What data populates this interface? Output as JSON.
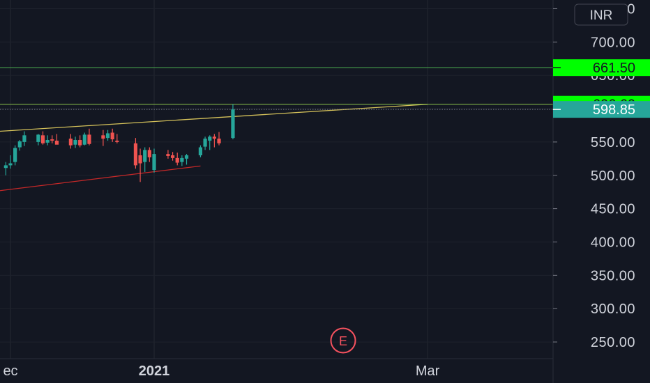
{
  "currency": "INR",
  "event_marker": "E",
  "chart_data": {
    "type": "candlestick",
    "x_ticks": [
      {
        "label": "ec",
        "date": "2020-12-01",
        "bold": false
      },
      {
        "label": "2021",
        "date": "2021-01-01",
        "bold": true
      },
      {
        "label": "Mar",
        "date": "2021-03-01",
        "bold": false
      }
    ],
    "y_ticks": [
      250,
      300,
      350,
      400,
      450,
      500,
      550,
      600,
      650,
      700,
      750
    ],
    "y_tick_labels": [
      "250.00",
      "300.00",
      "350.00",
      "400.00",
      "450.00",
      "500.00",
      "550.00",
      "600.00",
      "650.00",
      "700.00",
      "750.00"
    ],
    "ylim": [
      225,
      763
    ],
    "price_labels": [
      {
        "value": 661.5,
        "text": "661.50",
        "bg": "#00ff00",
        "fg": "#131722"
      },
      {
        "value": 606.6,
        "text": "606.60",
        "bg": "#00ff00",
        "fg": "#131722"
      },
      {
        "value": 598.85,
        "text": "598.85",
        "bg": "#26a69a",
        "fg": "#ffffff"
      }
    ],
    "horizontal_lines": [
      {
        "value": 661.5,
        "color": "#4caf50"
      },
      {
        "value": 606.6,
        "color": "#8bc34a"
      }
    ],
    "dotted_line": {
      "value": 598.85,
      "color": "#787b86"
    },
    "trend_lines": [
      {
        "color": "#d4c15a",
        "points": [
          [
            "2020-11-24",
            564
          ],
          [
            "2021-03-01",
            606.6
          ]
        ]
      },
      {
        "color": "#c62828",
        "points": [
          [
            "2020-11-24",
            473
          ],
          [
            "2021-01-11",
            514
          ]
        ]
      }
    ],
    "candles": [
      {
        "date": "2020-11-30",
        "o": 511,
        "h": 520,
        "l": 500,
        "c": 515
      },
      {
        "date": "2020-12-01",
        "o": 515,
        "h": 530,
        "l": 510,
        "c": 518
      },
      {
        "date": "2020-12-02",
        "o": 520,
        "h": 545,
        "l": 515,
        "c": 541
      },
      {
        "date": "2020-12-03",
        "o": 542,
        "h": 553,
        "l": 537,
        "c": 551
      },
      {
        "date": "2020-12-04",
        "o": 550,
        "h": 566,
        "l": 544,
        "c": 560
      },
      {
        "date": "2020-12-07",
        "o": 550,
        "h": 562,
        "l": 545,
        "c": 561
      },
      {
        "date": "2020-12-08",
        "o": 560,
        "h": 566,
        "l": 546,
        "c": 548
      },
      {
        "date": "2020-12-09",
        "o": 549,
        "h": 560,
        "l": 545,
        "c": 553
      },
      {
        "date": "2020-12-10",
        "o": 554,
        "h": 560,
        "l": 548,
        "c": 552
      },
      {
        "date": "2020-12-11",
        "o": 552,
        "h": 562,
        "l": 547,
        "c": 546
      },
      {
        "date": "2020-12-14",
        "o": 555,
        "h": 562,
        "l": 540,
        "c": 545
      },
      {
        "date": "2020-12-15",
        "o": 546,
        "h": 558,
        "l": 541,
        "c": 553
      },
      {
        "date": "2020-12-16",
        "o": 553,
        "h": 560,
        "l": 542,
        "c": 545
      },
      {
        "date": "2020-12-17",
        "o": 546,
        "h": 564,
        "l": 545,
        "c": 561
      },
      {
        "date": "2020-12-18",
        "o": 561,
        "h": 570,
        "l": 545,
        "c": 547
      },
      {
        "date": "2020-12-21",
        "o": 560,
        "h": 568,
        "l": 544,
        "c": 555
      },
      {
        "date": "2020-12-22",
        "o": 556,
        "h": 568,
        "l": 552,
        "c": 563
      },
      {
        "date": "2020-12-23",
        "o": 564,
        "h": 570,
        "l": 550,
        "c": 554
      },
      {
        "date": "2020-12-24",
        "o": 552,
        "h": 562,
        "l": 548,
        "c": 550
      },
      {
        "date": "2020-12-28",
        "o": 548,
        "h": 556,
        "l": 510,
        "c": 515
      },
      {
        "date": "2020-12-29",
        "o": 530,
        "h": 540,
        "l": 490,
        "c": 518
      },
      {
        "date": "2020-12-30",
        "o": 520,
        "h": 542,
        "l": 505,
        "c": 538
      },
      {
        "date": "2020-12-31",
        "o": 538,
        "h": 542,
        "l": 520,
        "c": 527
      },
      {
        "date": "2021-01-01",
        "o": 508,
        "h": 540,
        "l": 504,
        "c": 532
      },
      {
        "date": "2021-01-04",
        "o": 532,
        "h": 538,
        "l": 525,
        "c": 529
      },
      {
        "date": "2021-01-05",
        "o": 530,
        "h": 535,
        "l": 522,
        "c": 526
      },
      {
        "date": "2021-01-06",
        "o": 526,
        "h": 534,
        "l": 515,
        "c": 519
      },
      {
        "date": "2021-01-07",
        "o": 520,
        "h": 530,
        "l": 514,
        "c": 526
      },
      {
        "date": "2021-01-08",
        "o": 525,
        "h": 532,
        "l": 516,
        "c": 530
      },
      {
        "date": "2021-01-11",
        "o": 530,
        "h": 545,
        "l": 527,
        "c": 542
      },
      {
        "date": "2021-01-12",
        "o": 543,
        "h": 558,
        "l": 538,
        "c": 555
      },
      {
        "date": "2021-01-13",
        "o": 552,
        "h": 560,
        "l": 538,
        "c": 558
      },
      {
        "date": "2021-01-14",
        "o": 558,
        "h": 562,
        "l": 542,
        "c": 555
      },
      {
        "date": "2021-01-15",
        "o": 555,
        "h": 565,
        "l": 545,
        "c": 548
      },
      {
        "date": "2021-01-18",
        "o": 556,
        "h": 606.6,
        "l": 554,
        "c": 598.85
      }
    ]
  }
}
